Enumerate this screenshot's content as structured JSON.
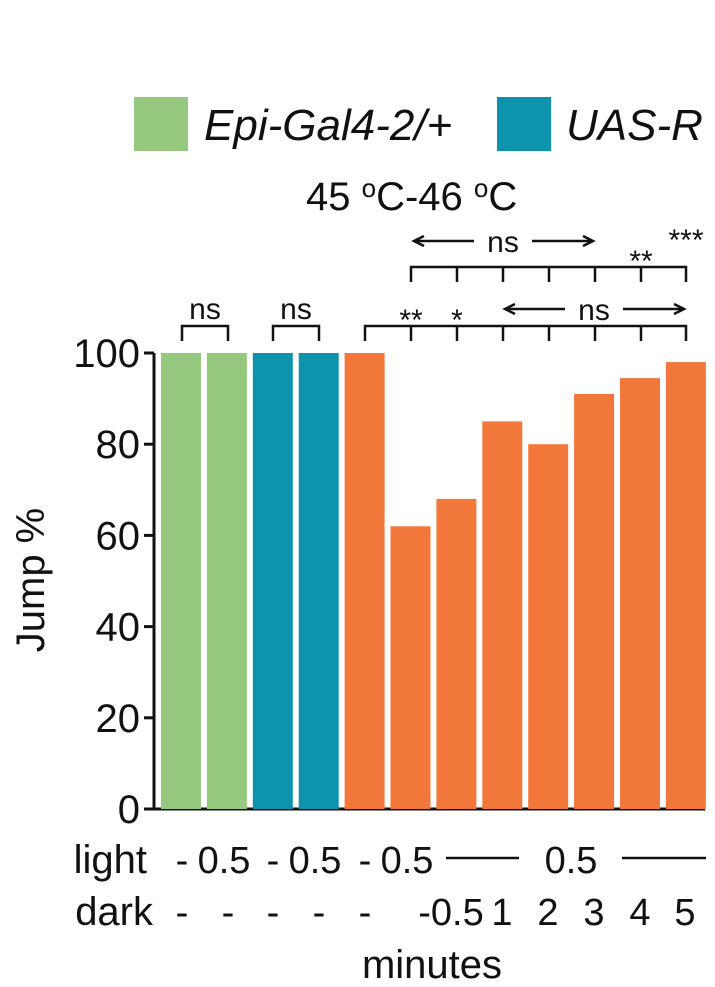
{
  "legend": [
    {
      "label": "Epi-Gal4-2/+",
      "color": "#95ca7e"
    },
    {
      "label": "UAS-R",
      "color": "#0e93ad"
    }
  ],
  "condition_title_parts": {
    "a": "45 ",
    "b": "o",
    "c": "C-46 ",
    "d": "o",
    "e": "C"
  },
  "colors": {
    "experimental": "#f2773a",
    "axis": "#111111"
  },
  "chart_data": {
    "type": "bar",
    "title": "45 oC-46 oC",
    "ylabel": "Jump %",
    "xlabel": "minutes",
    "ylim": [
      0,
      100
    ],
    "yticks": [
      "0",
      "20",
      "40",
      "60",
      "80",
      "100"
    ],
    "series": [
      {
        "name": "Epi-Gal4-2/+",
        "values": [
          100,
          100
        ]
      },
      {
        "name": "UAS-R",
        "values": [
          100,
          100
        ]
      },
      {
        "values": [
          100,
          62,
          68,
          85,
          80,
          91,
          94.5,
          98
        ]
      }
    ],
    "bar_values": [
      100,
      100,
      100,
      100,
      100,
      62,
      68,
      85,
      80,
      91,
      94.5,
      98
    ],
    "bar_colors": [
      "#95ca7e",
      "#95ca7e",
      "#0e93ad",
      "#0e93ad",
      "#f2773a",
      "#f2773a",
      "#f2773a",
      "#f2773a",
      "#f2773a",
      "#f2773a",
      "#f2773a",
      "#f2773a"
    ],
    "rows": {
      "light_label": "light",
      "dark_label": "dark",
      "light_values": [
        "-",
        "0.5",
        "-",
        "0.5",
        "-",
        "0.5",
        "0.5"
      ],
      "dark_values": [
        "-",
        "-",
        "-",
        "-",
        "-",
        "-0.5",
        "1",
        "2",
        "3",
        "4",
        "5"
      ]
    },
    "significance": {
      "ns_label": "ns",
      "double_star": "**",
      "single_star": "*",
      "triple_star": "***"
    }
  }
}
